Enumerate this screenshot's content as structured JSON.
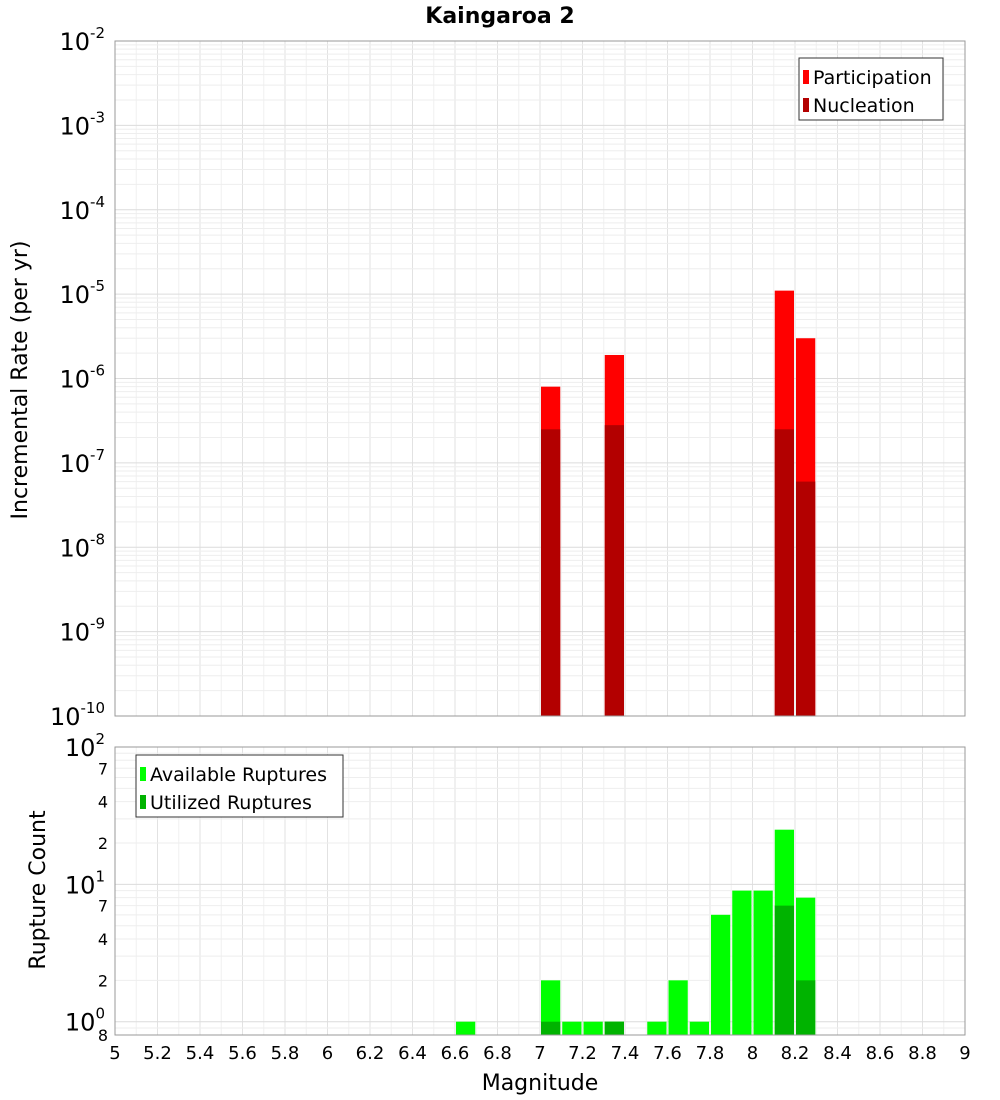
{
  "chart_data": [
    {
      "type": "bar",
      "title": "Kaingaroa 2",
      "ylabel": "Incremental Rate (per yr)",
      "y_scale": "log",
      "ylim": [
        1e-10,
        0.01
      ],
      "y_ticks": [
        {
          "base": "10",
          "exp": "-2",
          "value": 0.01
        },
        {
          "base": "10",
          "exp": "-3",
          "value": 0.001
        },
        {
          "base": "10",
          "exp": "-4",
          "value": 0.0001
        },
        {
          "base": "10",
          "exp": "-5",
          "value": 1e-05
        },
        {
          "base": "10",
          "exp": "-6",
          "value": 1e-06
        },
        {
          "base": "10",
          "exp": "-7",
          "value": 1e-07
        },
        {
          "base": "10",
          "exp": "-8",
          "value": 1e-08
        },
        {
          "base": "10",
          "exp": "-9",
          "value": 1e-09
        },
        {
          "base": "10",
          "exp": "-10",
          "value": 1e-10
        }
      ],
      "legend_position": "top-right",
      "grid": true,
      "series": [
        {
          "name": "Participation",
          "color": "#ff0000",
          "points": [
            {
              "x": 7.05,
              "y": 8e-07
            },
            {
              "x": 7.35,
              "y": 1.9e-06
            },
            {
              "x": 8.15,
              "y": 1.1e-05
            },
            {
              "x": 8.25,
              "y": 3e-06
            }
          ]
        },
        {
          "name": "Nucleation",
          "color": "#b30000",
          "points": [
            {
              "x": 7.05,
              "y": 2.5e-07
            },
            {
              "x": 7.35,
              "y": 2.8e-07
            },
            {
              "x": 8.15,
              "y": 2.5e-07
            },
            {
              "x": 8.25,
              "y": 6e-08
            }
          ]
        }
      ]
    },
    {
      "type": "bar",
      "xlabel": "Magnitude",
      "ylabel": "Rupture Count",
      "y_scale": "log",
      "ylim": [
        0.8,
        100
      ],
      "xlim": [
        5,
        9
      ],
      "x_ticks": [
        "5",
        "5.2",
        "5.4",
        "5.6",
        "5.8",
        "6",
        "6.2",
        "6.4",
        "6.6",
        "6.8",
        "7",
        "7.2",
        "7.4",
        "7.6",
        "7.8",
        "8",
        "8.2",
        "8.4",
        "8.6",
        "8.8",
        "9"
      ],
      "y_major_ticks": [
        {
          "base": "10",
          "exp": "2",
          "value": 100
        },
        {
          "base": "10",
          "exp": "1",
          "value": 10
        },
        {
          "base": "10",
          "exp": "0",
          "value": 1
        }
      ],
      "y_minor_ticks": [
        {
          "label": "7",
          "value": 70
        },
        {
          "label": "4",
          "value": 40
        },
        {
          "label": "2",
          "value": 20
        },
        {
          "label": "7",
          "value": 7
        },
        {
          "label": "4",
          "value": 4
        },
        {
          "label": "2",
          "value": 2
        },
        {
          "label": "8",
          "value": 0.8
        }
      ],
      "legend_position": "top-left",
      "grid": true,
      "series": [
        {
          "name": "Available Ruptures",
          "color": "#00ff00",
          "points": [
            {
              "x": 6.65,
              "y": 1
            },
            {
              "x": 7.05,
              "y": 2
            },
            {
              "x": 7.15,
              "y": 1
            },
            {
              "x": 7.25,
              "y": 1
            },
            {
              "x": 7.35,
              "y": 1
            },
            {
              "x": 7.55,
              "y": 1
            },
            {
              "x": 7.65,
              "y": 2
            },
            {
              "x": 7.75,
              "y": 1
            },
            {
              "x": 7.85,
              "y": 6
            },
            {
              "x": 7.95,
              "y": 9
            },
            {
              "x": 8.05,
              "y": 9
            },
            {
              "x": 8.15,
              "y": 25
            },
            {
              "x": 8.25,
              "y": 8
            }
          ]
        },
        {
          "name": "Utilized Ruptures",
          "color": "#00b300",
          "points": [
            {
              "x": 7.05,
              "y": 1
            },
            {
              "x": 7.35,
              "y": 1
            },
            {
              "x": 8.15,
              "y": 7
            },
            {
              "x": 8.25,
              "y": 2
            }
          ]
        }
      ]
    }
  ]
}
